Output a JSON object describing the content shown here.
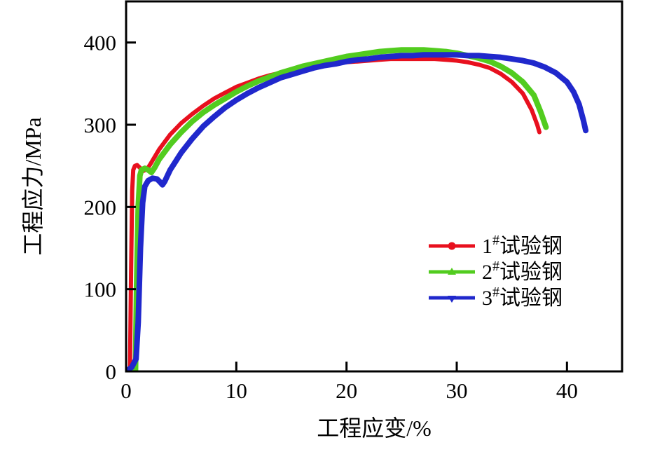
{
  "figure": {
    "background": "#ffffff",
    "frame_color": "#000000",
    "frame_line_width": 3
  },
  "axes": {
    "x_label": "工程应变/%",
    "y_label": "工程应力/MPa"
  },
  "legend": {
    "position": "lower-right",
    "entries": [
      {
        "num": "1",
        "sup": "#",
        "name": "试验钢",
        "color": "#e8101e",
        "marker": "circle"
      },
      {
        "num": "2",
        "sup": "#",
        "name": "试验钢",
        "color": "#52cc1f",
        "marker": "triangle-up"
      },
      {
        "num": "3",
        "sup": "#",
        "name": "试验钢",
        "color": "#2028cc",
        "marker": "triangle-down"
      }
    ]
  },
  "chart_data": {
    "type": "line",
    "title": "",
    "xlabel": "工程应变/%",
    "ylabel": "工程应力/MPa",
    "xlim": [
      0,
      45
    ],
    "ylim": [
      0,
      450
    ],
    "x_ticks": [
      0,
      10,
      20,
      30,
      40
    ],
    "y_ticks": [
      0,
      100,
      200,
      300,
      400
    ],
    "grid": false,
    "legend_position": "lower right",
    "series": [
      {
        "name": "1#试验钢",
        "color": "#e8101e",
        "line_width": 6,
        "points": [
          [
            0,
            0
          ],
          [
            0.35,
            0
          ],
          [
            0.45,
            120
          ],
          [
            0.55,
            220
          ],
          [
            0.65,
            245
          ],
          [
            0.8,
            250
          ],
          [
            1.0,
            251
          ],
          [
            1.3,
            247
          ],
          [
            1.6,
            244
          ],
          [
            1.9,
            246
          ],
          [
            2.2,
            252
          ],
          [
            3,
            270
          ],
          [
            4,
            288
          ],
          [
            5,
            302
          ],
          [
            6,
            313
          ],
          [
            7,
            323
          ],
          [
            8,
            332
          ],
          [
            9,
            339
          ],
          [
            10,
            346
          ],
          [
            11,
            351
          ],
          [
            12,
            356
          ],
          [
            13,
            360
          ],
          [
            14,
            363
          ],
          [
            15,
            366
          ],
          [
            16,
            369
          ],
          [
            17,
            371
          ],
          [
            18,
            373
          ],
          [
            19,
            375
          ],
          [
            20,
            376
          ],
          [
            21,
            377
          ],
          [
            22,
            378
          ],
          [
            23,
            379
          ],
          [
            24,
            380
          ],
          [
            25,
            380
          ],
          [
            26,
            380
          ],
          [
            27,
            380
          ],
          [
            28,
            380
          ],
          [
            29,
            379
          ],
          [
            30,
            378
          ],
          [
            31,
            376
          ],
          [
            32,
            373
          ],
          [
            33,
            369
          ],
          [
            34,
            362
          ],
          [
            35,
            352
          ],
          [
            36,
            338
          ],
          [
            36.8,
            318
          ],
          [
            37.3,
            300
          ],
          [
            37.5,
            291
          ]
        ]
      },
      {
        "name": "2#试验钢",
        "color": "#52cc1f",
        "line_width": 8,
        "points": [
          [
            0,
            0
          ],
          [
            0.85,
            0
          ],
          [
            0.95,
            100
          ],
          [
            1.1,
            200
          ],
          [
            1.25,
            238
          ],
          [
            1.4,
            245
          ],
          [
            1.7,
            247
          ],
          [
            2.0,
            245
          ],
          [
            2.3,
            242
          ],
          [
            2.6,
            248
          ],
          [
            3,
            258
          ],
          [
            4,
            276
          ],
          [
            5,
            291
          ],
          [
            6,
            304
          ],
          [
            7,
            315
          ],
          [
            8,
            324
          ],
          [
            9,
            332
          ],
          [
            10,
            340
          ],
          [
            11,
            347
          ],
          [
            12,
            353
          ],
          [
            13,
            358
          ],
          [
            14,
            363
          ],
          [
            15,
            367
          ],
          [
            16,
            371
          ],
          [
            17,
            374
          ],
          [
            18,
            377
          ],
          [
            19,
            380
          ],
          [
            20,
            383
          ],
          [
            21,
            385
          ],
          [
            22,
            387
          ],
          [
            23,
            389
          ],
          [
            24,
            390
          ],
          [
            25,
            391
          ],
          [
            26,
            391
          ],
          [
            27,
            391
          ],
          [
            28,
            390
          ],
          [
            29,
            389
          ],
          [
            30,
            387
          ],
          [
            31,
            384
          ],
          [
            32,
            381
          ],
          [
            33,
            377
          ],
          [
            34,
            371
          ],
          [
            35,
            363
          ],
          [
            36,
            352
          ],
          [
            37,
            336
          ],
          [
            37.6,
            316
          ],
          [
            38.1,
            297
          ]
        ]
      },
      {
        "name": "3#试验钢",
        "color": "#2028cc",
        "line_width": 8,
        "points": [
          [
            0,
            0
          ],
          [
            0.5,
            5
          ],
          [
            0.9,
            15
          ],
          [
            1.1,
            60
          ],
          [
            1.3,
            150
          ],
          [
            1.5,
            205
          ],
          [
            1.7,
            225
          ],
          [
            2.0,
            232
          ],
          [
            2.4,
            235
          ],
          [
            2.8,
            234
          ],
          [
            3.1,
            230
          ],
          [
            3.3,
            227
          ],
          [
            3.5,
            231
          ],
          [
            4,
            245
          ],
          [
            5,
            266
          ],
          [
            6,
            283
          ],
          [
            7,
            298
          ],
          [
            8,
            310
          ],
          [
            9,
            321
          ],
          [
            10,
            330
          ],
          [
            11,
            338
          ],
          [
            12,
            345
          ],
          [
            13,
            351
          ],
          [
            14,
            357
          ],
          [
            15,
            361
          ],
          [
            16,
            365
          ],
          [
            17,
            369
          ],
          [
            18,
            372
          ],
          [
            19,
            374
          ],
          [
            20,
            377
          ],
          [
            21,
            379
          ],
          [
            22,
            380
          ],
          [
            23,
            382
          ],
          [
            24,
            383
          ],
          [
            25,
            384
          ],
          [
            26,
            384
          ],
          [
            27,
            385
          ],
          [
            28,
            385
          ],
          [
            29,
            385
          ],
          [
            30,
            385
          ],
          [
            31,
            384
          ],
          [
            32,
            384
          ],
          [
            33,
            383
          ],
          [
            34,
            382
          ],
          [
            35,
            380
          ],
          [
            36,
            378
          ],
          [
            37,
            375
          ],
          [
            38,
            370
          ],
          [
            39,
            363
          ],
          [
            40,
            352
          ],
          [
            40.6,
            340
          ],
          [
            41.1,
            325
          ],
          [
            41.5,
            305
          ],
          [
            41.7,
            293
          ]
        ]
      }
    ]
  }
}
